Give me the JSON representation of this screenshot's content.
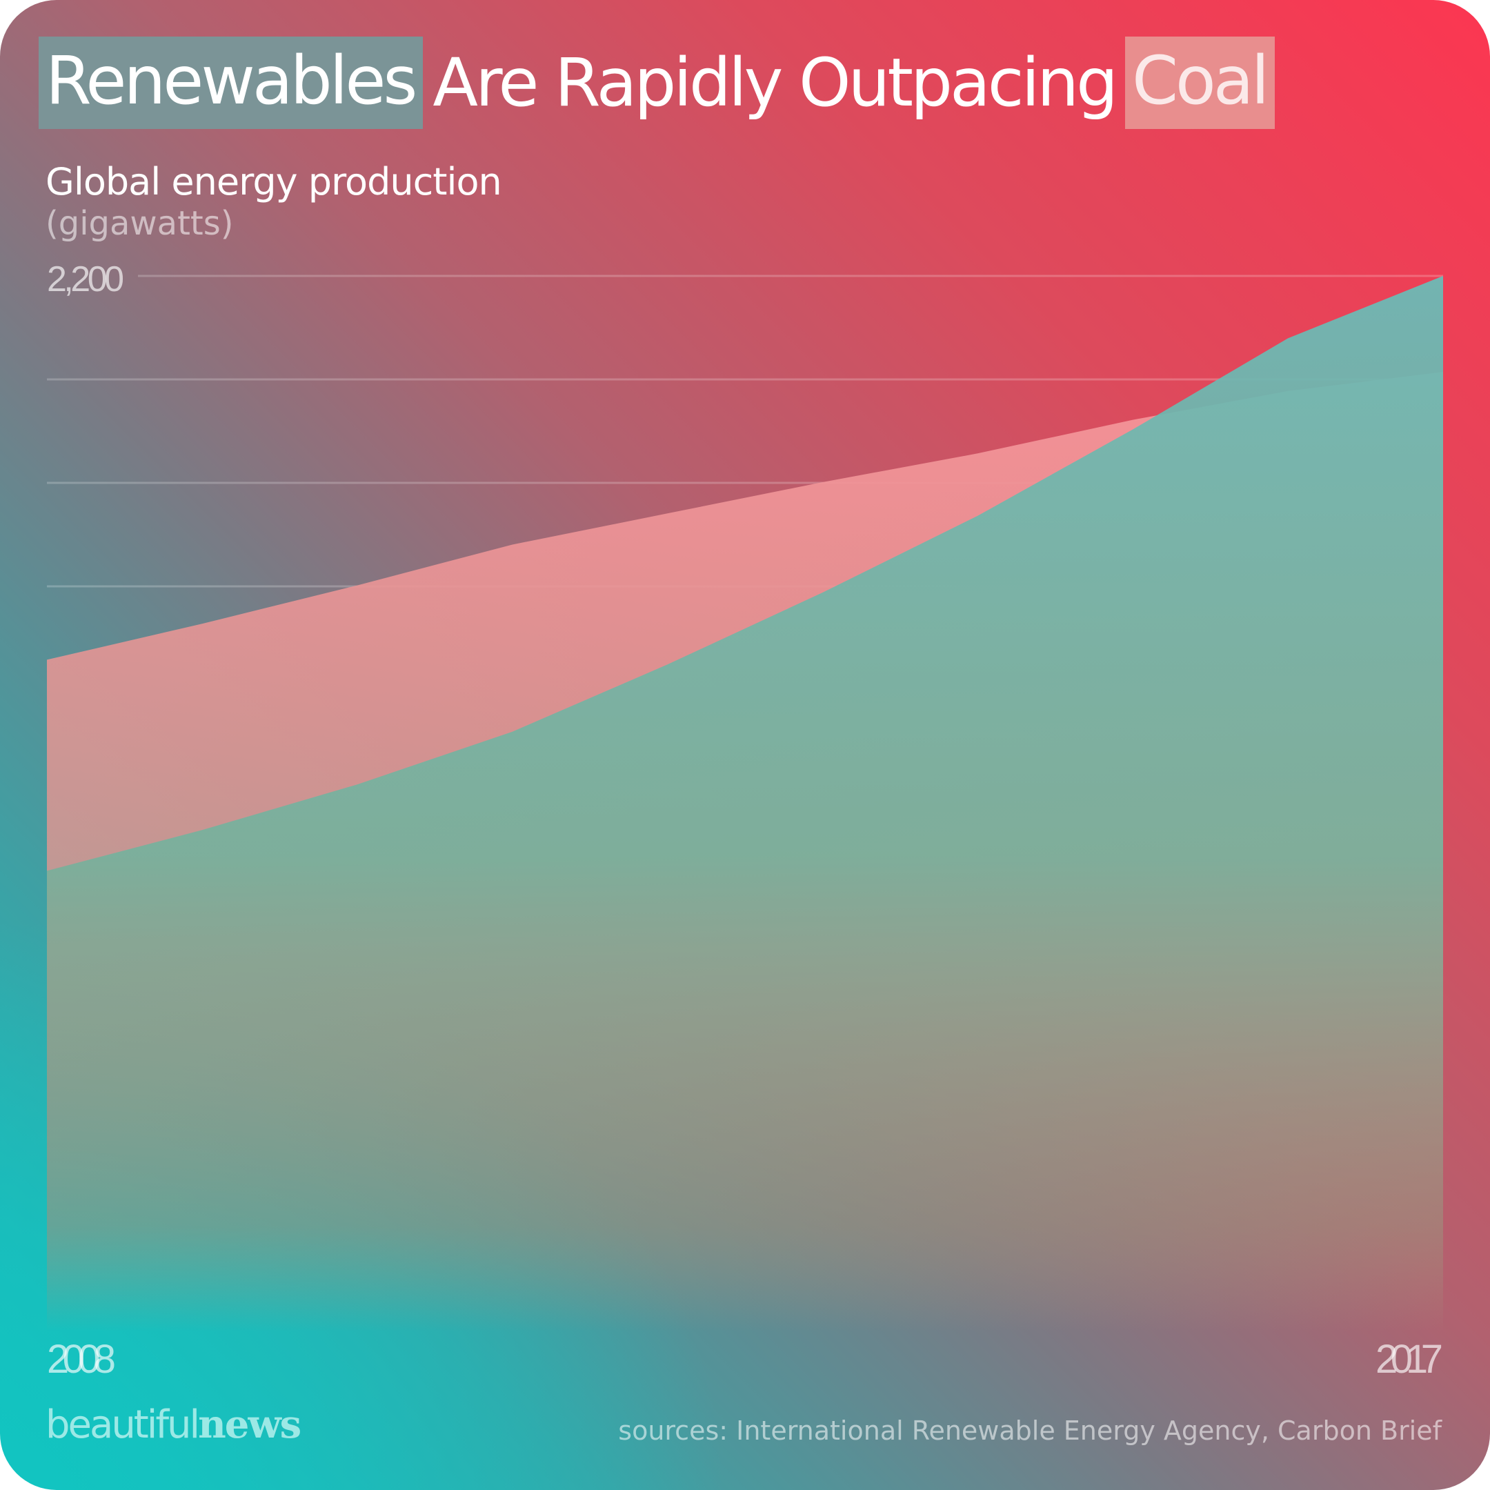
{
  "title": {
    "part1": "Renewables",
    "part2": "Are Rapidly Outpacing",
    "part3": "Coal",
    "renewables_color": "#7b9497",
    "coal_color": "#e88e8e"
  },
  "subtitle": "Global energy production",
  "unit": "(gigawatts)",
  "brand": {
    "part1": "beautiful",
    "part2": "news"
  },
  "sources": "sources: International Renewable Energy Agency, Carbon Brief",
  "chart_data": {
    "type": "area",
    "x": [
      2008,
      2009,
      2010,
      2011,
      2012,
      2013,
      2014,
      2015,
      2016,
      2017
    ],
    "x_tick_labels": [
      "2008",
      "2017"
    ],
    "y_tick_labels": [
      "2,200"
    ],
    "ylim": [
      0,
      2200
    ],
    "grid": true,
    "series": [
      {
        "name": "Coal",
        "color": "#f0888e",
        "values": [
          1400,
          1475,
          1555,
          1640,
          1705,
          1770,
          1830,
          1900,
          1960,
          2000
        ]
      },
      {
        "name": "Renewables",
        "color": "#6cbab6",
        "values": [
          960,
          1045,
          1140,
          1250,
          1390,
          1540,
          1700,
          1880,
          2070,
          2200
        ]
      }
    ]
  }
}
